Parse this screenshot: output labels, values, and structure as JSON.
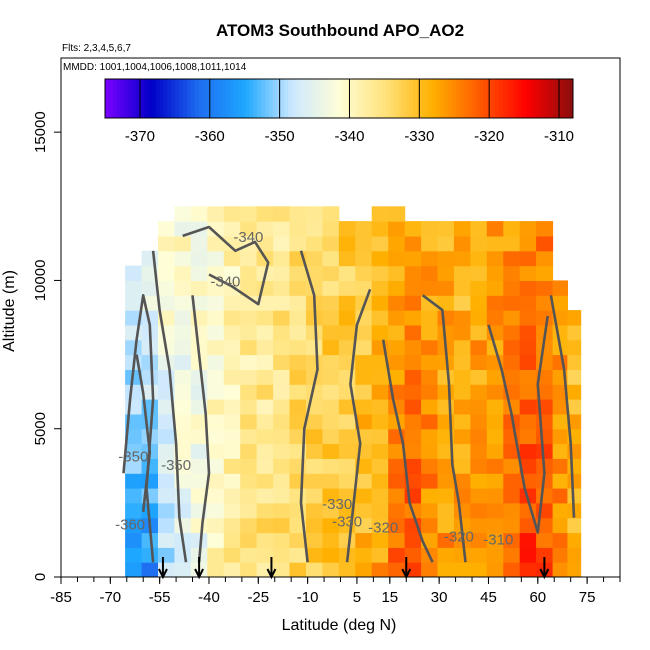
{
  "chart_data": {
    "type": "heatmap",
    "title": "ATOM3 Southbound APO_AO2",
    "flights_note": "Flts: 2,3,4,5,6,7",
    "dates_note": "MMDD: 1001,1004,1006,1008,1011,1014",
    "xlabel": "Latitude (deg N)",
    "ylabel": "Altitude (m)",
    "xlim": [
      -85,
      85
    ],
    "ylim": [
      0,
      17500
    ],
    "x_tick_labels": [
      "-85",
      "-70",
      "-55",
      "-40",
      "-25",
      "-10",
      "5",
      "15",
      "30",
      "45",
      "60",
      "75"
    ],
    "x_tick_values": [
      -85,
      -70,
      -55,
      -40,
      -25,
      -10,
      5,
      15,
      30,
      45,
      60,
      75
    ],
    "y_tick_labels": [
      "0",
      "5000",
      "10000",
      "15000"
    ],
    "y_tick_values": [
      0,
      5000,
      10000,
      15000
    ],
    "colorbar": {
      "range": [
        -375,
        -308
      ],
      "tick_labels": [
        "-370",
        "-360",
        "-350",
        "-340",
        "-330",
        "-320",
        "-310"
      ],
      "tick_values": [
        -370,
        -360,
        -350,
        -340,
        -330,
        -320,
        -310
      ],
      "colors": [
        "#7b00ff",
        "#0000c8",
        "#1e6cf0",
        "#1ea8ff",
        "#cce8ff",
        "#fffed8",
        "#ffe27a",
        "#ffb000",
        "#ff5a00",
        "#ff0000",
        "#8b0e0e"
      ]
    },
    "contour_labels": [
      "-340",
      "-340",
      "-350",
      "-330",
      "-330",
      "-320",
      "-360",
      "-350",
      "-320",
      "-310"
    ],
    "flight_markers_latitude": [
      -54,
      -43,
      -21,
      20,
      62
    ],
    "field_profile": {
      "latitude": [
        -63,
        -58,
        -53,
        -48,
        -43,
        -38,
        -33,
        -28,
        -23,
        -18,
        -13,
        -8,
        -3,
        2,
        7,
        12,
        17,
        22,
        27,
        32,
        37,
        42,
        47,
        52,
        57,
        62,
        67,
        71
      ],
      "apo_surface": [
        -356,
        -358,
        -350,
        -346,
        -344,
        -339,
        -337,
        -336,
        -335,
        -334,
        -333,
        -332,
        -331,
        -330,
        -329,
        -327,
        -322,
        -321,
        -324,
        -326,
        -327,
        -326,
        -324,
        -322,
        -319,
        -320,
        -325,
        -329
      ],
      "apo_upper": [
        -345,
        -343,
        -341,
        -341,
        -341,
        -340,
        -339,
        -338,
        -337,
        -336,
        -335,
        -334,
        -333,
        -332,
        -331,
        -330,
        -327,
        -326,
        -327,
        -328,
        -329,
        -328,
        -327,
        -326,
        -324,
        -324,
        -327,
        -330
      ],
      "top_altitude": [
        10500,
        11000,
        12000,
        12500,
        12500,
        12500,
        12500,
        12500,
        12500,
        12500,
        12500,
        12500,
        12500,
        12000,
        12000,
        12500,
        12500,
        12000,
        12000,
        12000,
        12000,
        12000,
        12000,
        12000,
        12000,
        12000,
        10000,
        9000
      ],
      "bottom_altitude": [
        0,
        0,
        0,
        0,
        0,
        0,
        0,
        0,
        0,
        0,
        0,
        0,
        0,
        0,
        0,
        0,
        0,
        0,
        0,
        0,
        0,
        0,
        0,
        0,
        0,
        0,
        0,
        0
      ]
    }
  }
}
